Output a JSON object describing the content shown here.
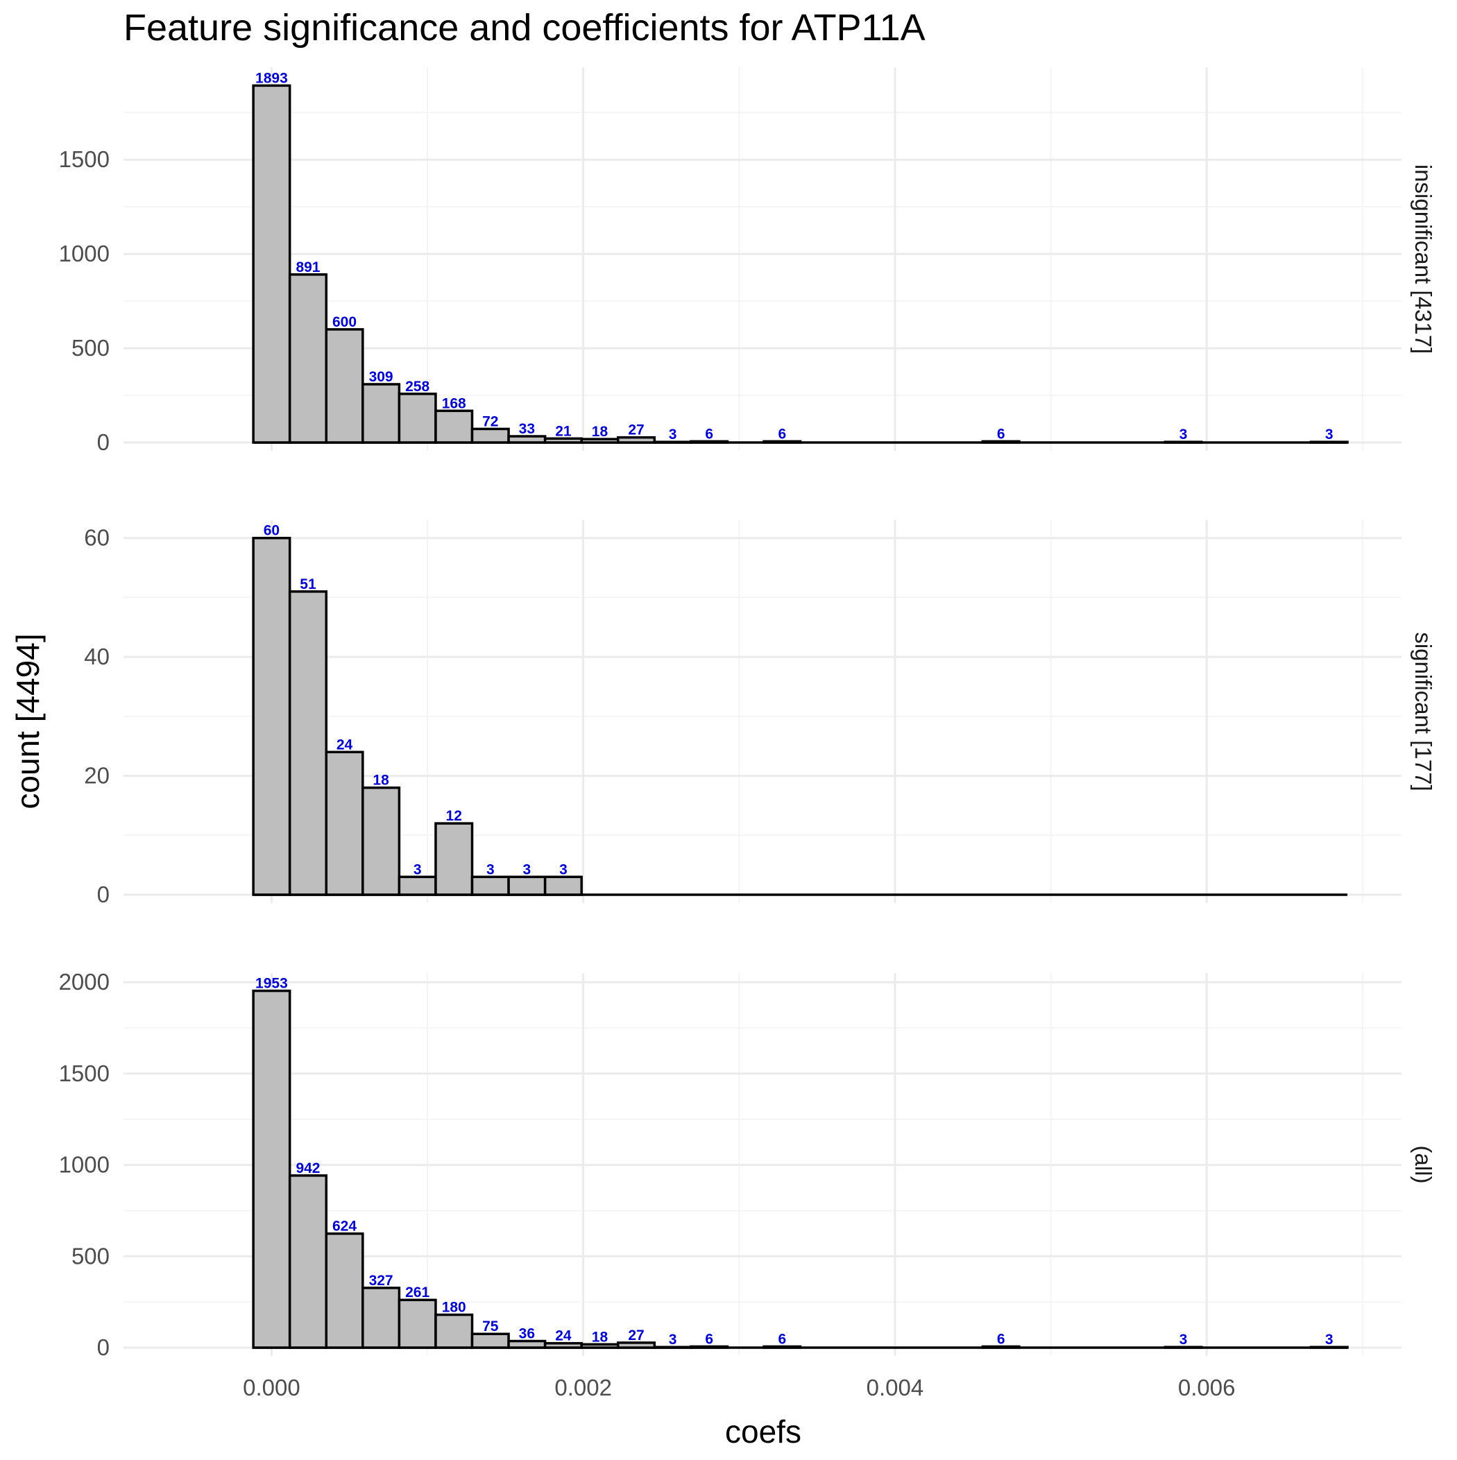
{
  "chart_data": {
    "type": "bar",
    "title": "Feature significance and coefficients for ATP11A",
    "xlabel": "coefs",
    "ylabel": "count [4494]",
    "x_ticks": [
      0.0,
      0.002,
      0.004,
      0.006
    ],
    "x_tick_labels": [
      "0.000",
      "0.002",
      "0.004",
      "0.006"
    ],
    "xlim": [
      -0.00095,
      0.00725
    ],
    "bin_start": -0.000117,
    "bin_width": 0.000234,
    "n_bins": 30,
    "grid": true,
    "bar_fill": "#bebebe",
    "label_color": "#0000cc",
    "panels": [
      {
        "strip": "insignificant [4317]",
        "ylim": [
          0,
          1990
        ],
        "y_ticks": [
          0,
          500,
          1000,
          1500
        ],
        "bins": [
          {
            "bin": 0,
            "count": 1893
          },
          {
            "bin": 1,
            "count": 891
          },
          {
            "bin": 2,
            "count": 600
          },
          {
            "bin": 3,
            "count": 309
          },
          {
            "bin": 4,
            "count": 258
          },
          {
            "bin": 5,
            "count": 168
          },
          {
            "bin": 6,
            "count": 72
          },
          {
            "bin": 7,
            "count": 33
          },
          {
            "bin": 8,
            "count": 21
          },
          {
            "bin": 9,
            "count": 18
          },
          {
            "bin": 10,
            "count": 27
          },
          {
            "bin": 11,
            "count": 3
          },
          {
            "bin": 12,
            "count": 6
          },
          {
            "bin": 14,
            "count": 6
          },
          {
            "bin": 20,
            "count": 6
          },
          {
            "bin": 25,
            "count": 3
          },
          {
            "bin": 29,
            "count": 3
          }
        ]
      },
      {
        "strip": "significant [177]",
        "ylim": [
          0,
          63
        ],
        "y_ticks": [
          0,
          20,
          40,
          60
        ],
        "bins": [
          {
            "bin": 0,
            "count": 60
          },
          {
            "bin": 1,
            "count": 51
          },
          {
            "bin": 2,
            "count": 24
          },
          {
            "bin": 3,
            "count": 18
          },
          {
            "bin": 4,
            "count": 3
          },
          {
            "bin": 5,
            "count": 12
          },
          {
            "bin": 6,
            "count": 3
          },
          {
            "bin": 7,
            "count": 3
          },
          {
            "bin": 8,
            "count": 3
          }
        ]
      },
      {
        "strip": "(all)",
        "ylim": [
          0,
          2050
        ],
        "y_ticks": [
          0,
          500,
          1000,
          1500,
          2000
        ],
        "bins": [
          {
            "bin": 0,
            "count": 1953
          },
          {
            "bin": 1,
            "count": 942
          },
          {
            "bin": 2,
            "count": 624
          },
          {
            "bin": 3,
            "count": 327
          },
          {
            "bin": 4,
            "count": 261
          },
          {
            "bin": 5,
            "count": 180
          },
          {
            "bin": 6,
            "count": 75
          },
          {
            "bin": 7,
            "count": 36
          },
          {
            "bin": 8,
            "count": 24
          },
          {
            "bin": 9,
            "count": 18
          },
          {
            "bin": 10,
            "count": 27
          },
          {
            "bin": 11,
            "count": 3
          },
          {
            "bin": 12,
            "count": 6
          },
          {
            "bin": 14,
            "count": 6
          },
          {
            "bin": 20,
            "count": 6
          },
          {
            "bin": 25,
            "count": 3
          },
          {
            "bin": 29,
            "count": 3
          }
        ]
      }
    ]
  }
}
